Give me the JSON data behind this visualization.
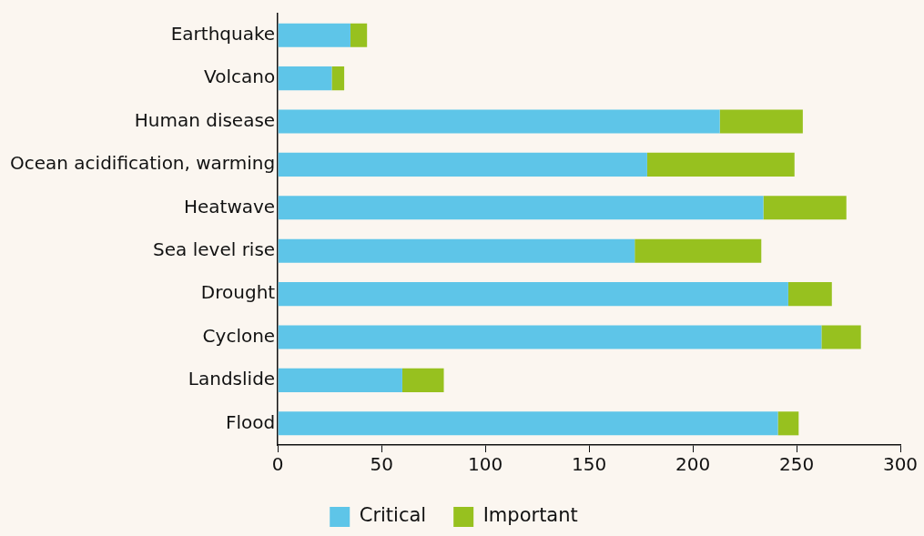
{
  "chart_data": {
    "type": "bar",
    "orientation": "horizontal",
    "stacked": true,
    "categories": [
      "Earthquake",
      "Volcano",
      "Human disease",
      "Ocean acidification, warming",
      "Heatwave",
      "Sea level rise",
      "Drought",
      "Cyclone",
      "Landslide",
      "Flood"
    ],
    "series": [
      {
        "name": "Critical",
        "color": "#5ec5e8",
        "values": [
          35,
          26,
          213,
          178,
          234,
          172,
          246,
          262,
          60,
          241
        ]
      },
      {
        "name": "Important",
        "color": "#97c11f",
        "values": [
          8,
          6,
          40,
          71,
          40,
          61,
          21,
          19,
          20,
          10
        ]
      }
    ],
    "xlim": [
      0,
      300
    ],
    "xticks": [
      0,
      50,
      100,
      150,
      200,
      250,
      300
    ],
    "grid": false,
    "legend": "bottom"
  }
}
